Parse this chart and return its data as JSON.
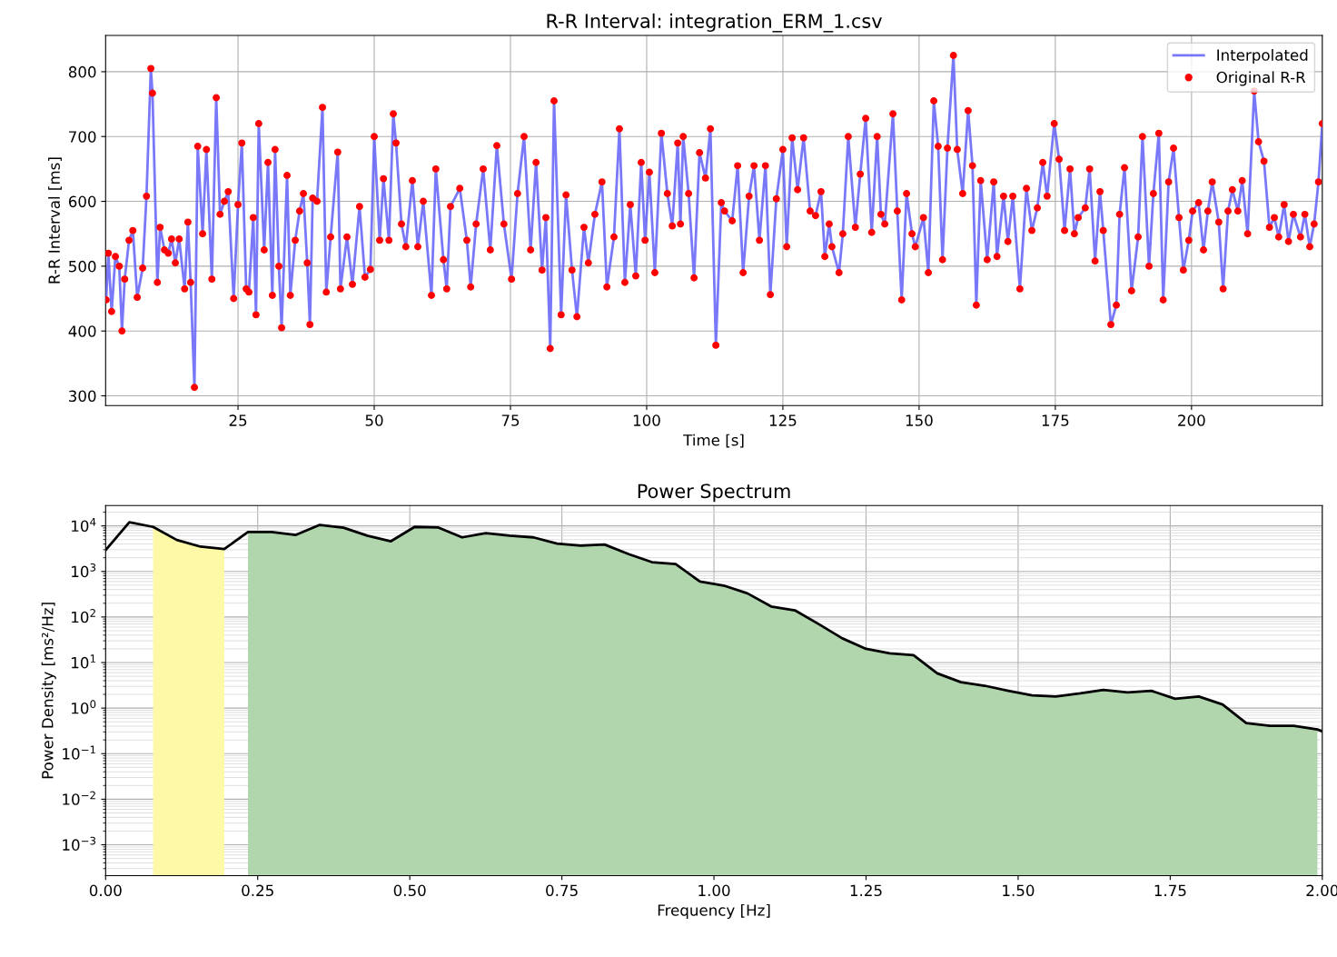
{
  "chart_data": [
    {
      "type": "line",
      "title": "R-R Interval: integration_ERM_1.csv",
      "xlabel": "Time [s]",
      "ylabel": "R-R Interval [ms]",
      "xlim": [
        0.7,
        224
      ],
      "ylim": [
        285,
        856
      ],
      "xticks": [
        25,
        50,
        75,
        100,
        125,
        150,
        175,
        200
      ],
      "yticks": [
        300,
        400,
        500,
        600,
        700,
        800
      ],
      "grid": true,
      "legend": "top right",
      "series": [
        {
          "name": "Interpolated",
          "color": "#6060f8",
          "x": [
            0.8,
            1.2,
            1.8,
            2.5,
            3.2,
            3.7,
            4.2,
            5,
            5.7,
            6.5,
            7.5,
            8.2,
            9,
            9.3,
            10.2,
            10.7,
            11.5,
            12.2,
            12.8,
            13.5,
            14.2,
            15.2,
            15.8,
            16.3,
            17,
            17.6,
            18.5,
            19.2,
            20.2,
            21,
            21.7,
            22.5,
            23.2,
            24.2,
            25,
            25.7,
            26.5,
            27,
            27.8,
            28.3,
            28.8,
            29.8,
            30.5,
            31.3,
            31.8,
            32.5,
            33,
            34,
            34.6,
            35.5,
            36.3,
            37,
            37.7,
            38.2,
            38.7,
            39.5,
            40.5,
            41.2,
            42,
            43.3,
            43.8,
            45,
            46,
            47.3,
            48.3,
            49.3,
            50,
            51,
            51.7,
            52.7,
            53.5,
            54,
            55,
            55.8,
            57,
            58,
            59,
            60.5,
            61.3,
            62.7,
            63.3,
            64,
            65.7,
            67,
            67.7,
            68.7,
            70,
            71.3,
            72.5,
            73.8,
            75.2,
            76.3,
            77.5,
            78.7,
            79.7,
            80.8,
            81.5,
            82.3,
            83,
            84.3,
            85.2,
            86.3,
            87.2,
            88.5,
            89.3,
            90.5,
            91.8,
            92.7,
            94,
            95,
            96,
            97,
            98,
            99,
            99.7,
            100.5,
            101.5,
            102.7,
            103.8,
            104.7,
            105.7,
            106.2,
            106.7,
            107.7,
            108.7,
            109.7,
            110.8,
            111.7,
            112.7,
            113.7,
            114.3,
            115.7,
            116.7,
            117.7,
            118.8,
            119.7,
            120.7,
            121.8,
            122.7,
            123.8,
            125,
            125.7,
            126.7,
            127.7,
            128.8,
            130,
            131,
            132,
            132.7,
            133.5,
            134,
            135.3,
            136,
            137,
            138.3,
            139.2,
            140.2,
            141.3,
            142.3,
            143,
            143.7,
            145.2,
            146,
            146.8,
            147.7,
            148.7,
            149.3,
            150.8,
            151.7,
            152.7,
            153.5,
            154.3,
            155.2,
            156.3,
            157,
            158,
            159,
            159.8,
            160.5,
            161.3,
            162.5,
            163.7,
            164.3,
            165.5,
            166.3,
            167.2,
            168.5,
            169.7,
            170.7,
            171.7,
            172.7,
            173.5,
            174.8,
            175.7,
            176.7,
            177.7,
            178.5,
            179.2,
            180.5,
            181.3,
            182.3,
            183.2,
            183.8,
            185.2,
            186.2,
            186.8,
            187.7,
            189,
            190.2,
            191,
            192.2,
            193,
            194,
            194.8,
            195.8,
            196.7,
            197.7,
            198.5,
            199.5,
            200.2,
            201.3,
            202.2,
            203,
            203.8,
            205,
            205.8,
            206.7,
            207.5,
            208.5,
            209.3,
            210.3,
            211.5,
            212.3,
            213.3,
            214.3,
            215.2,
            216,
            217,
            217.8,
            218.7,
            220,
            220.8,
            221.7,
            222.5,
            223.3,
            224
          ],
          "values": [
            448,
            520,
            430,
            515,
            500,
            400,
            480,
            540,
            555,
            452,
            497,
            608,
            805,
            767,
            475,
            560,
            525,
            520,
            542,
            505,
            542,
            465,
            568,
            475,
            313,
            685,
            550,
            680,
            480,
            760,
            580,
            600,
            615,
            450,
            595,
            690,
            465,
            460,
            575,
            425,
            720,
            525,
            660,
            455,
            680,
            500,
            405,
            640,
            455,
            540,
            585,
            612,
            505,
            410,
            605,
            600,
            745,
            460,
            545,
            676,
            465,
            545,
            472,
            592,
            483,
            495,
            700,
            540,
            635,
            540,
            735,
            690,
            565,
            530,
            632,
            530,
            600,
            455,
            650,
            510,
            465,
            592,
            620,
            540,
            468,
            565,
            650,
            525,
            686,
            565,
            480,
            612,
            700,
            525,
            660,
            494,
            575,
            373,
            755,
            425,
            610,
            494,
            422,
            560,
            505,
            580,
            630,
            468,
            545,
            712,
            475,
            595,
            485,
            660,
            540,
            645,
            490,
            705,
            612,
            562,
            690,
            565,
            700,
            612,
            482,
            675,
            636,
            712,
            378,
            598,
            585,
            570,
            655,
            490,
            608,
            655,
            540,
            655,
            456,
            604,
            680,
            530,
            698,
            618,
            698,
            585,
            578,
            615,
            515,
            565,
            530,
            490,
            550,
            700,
            560,
            642,
            728,
            552,
            700,
            580,
            565,
            735,
            585,
            448,
            612,
            550,
            530,
            575,
            490,
            755,
            685,
            510,
            682,
            825,
            680,
            612,
            740,
            655,
            440,
            632,
            510,
            630,
            515,
            608,
            538,
            608,
            465,
            620,
            555,
            590,
            660,
            608,
            720,
            665,
            555,
            650,
            550,
            575,
            590,
            650,
            508,
            615,
            555,
            410,
            440,
            580,
            652,
            462,
            545,
            700,
            500,
            612,
            705,
            448,
            630,
            682,
            575,
            494,
            540,
            585,
            598,
            525,
            585,
            630,
            568,
            465,
            585,
            618,
            585,
            632,
            550,
            770,
            692,
            662,
            560,
            575,
            545,
            595,
            538,
            580,
            545,
            580,
            530,
            565,
            630,
            720
          ]
        },
        {
          "name": "Original R-R",
          "type": "scatter",
          "color": "#ff0000",
          "x": [
            0.8,
            1.2,
            1.8,
            2.5,
            3.2,
            3.7,
            4.2,
            5,
            5.7,
            6.5,
            7.5,
            8.2,
            9,
            9.3,
            10.2,
            10.7,
            11.5,
            12.2,
            12.8,
            13.5,
            14.2,
            15.2,
            15.8,
            16.3,
            17,
            17.6,
            18.5,
            19.2,
            20.2,
            21,
            21.7,
            22.5,
            23.2,
            24.2,
            25,
            25.7,
            26.5,
            27,
            27.8,
            28.3,
            28.8,
            29.8,
            30.5,
            31.3,
            31.8,
            32.5,
            33,
            34,
            34.6,
            35.5,
            36.3,
            37,
            37.7,
            38.2,
            38.7,
            39.5,
            40.5,
            41.2,
            42,
            43.3,
            43.8,
            45,
            46,
            47.3,
            48.3,
            49.3,
            50,
            51,
            51.7,
            52.7,
            53.5,
            54,
            55,
            55.8,
            57,
            58,
            59,
            60.5,
            61.3,
            62.7,
            63.3,
            64,
            65.7,
            67,
            67.7,
            68.7,
            70,
            71.3,
            72.5,
            73.8,
            75.2,
            76.3,
            77.5,
            78.7,
            79.7,
            80.8,
            81.5,
            82.3,
            83,
            84.3,
            85.2,
            86.3,
            87.2,
            88.5,
            89.3,
            90.5,
            91.8,
            92.7,
            94,
            95,
            96,
            97,
            98,
            99,
            99.7,
            100.5,
            101.5,
            102.7,
            103.8,
            104.7,
            105.7,
            106.2,
            106.7,
            107.7,
            108.7,
            109.7,
            110.8,
            111.7,
            112.7,
            113.7,
            114.3,
            115.7,
            116.7,
            117.7,
            118.8,
            119.7,
            120.7,
            121.8,
            122.7,
            123.8,
            125,
            125.7,
            126.7,
            127.7,
            128.8,
            130,
            131,
            132,
            132.7,
            133.5,
            134,
            135.3,
            136,
            137,
            138.3,
            139.2,
            140.2,
            141.3,
            142.3,
            143,
            143.7,
            145.2,
            146,
            146.8,
            147.7,
            148.7,
            149.3,
            150.8,
            151.7,
            152.7,
            153.5,
            154.3,
            155.2,
            156.3,
            157,
            158,
            159,
            159.8,
            160.5,
            161.3,
            162.5,
            163.7,
            164.3,
            165.5,
            166.3,
            167.2,
            168.5,
            169.7,
            170.7,
            171.7,
            172.7,
            173.5,
            174.8,
            175.7,
            176.7,
            177.7,
            178.5,
            179.2,
            180.5,
            181.3,
            182.3,
            183.2,
            183.8,
            185.2,
            186.2,
            186.8,
            187.7,
            189,
            190.2,
            191,
            192.2,
            193,
            194,
            194.8,
            195.8,
            196.7,
            197.7,
            198.5,
            199.5,
            200.2,
            201.3,
            202.2,
            203,
            203.8,
            205,
            205.8,
            206.7,
            207.5,
            208.5,
            209.3,
            210.3,
            211.5,
            212.3,
            213.3,
            214.3,
            215.2,
            216,
            217,
            217.8,
            218.7,
            220,
            220.8,
            221.7,
            222.5,
            223.3,
            224
          ],
          "values": [
            448,
            520,
            430,
            515,
            500,
            400,
            480,
            540,
            555,
            452,
            497,
            608,
            805,
            767,
            475,
            560,
            525,
            520,
            542,
            505,
            542,
            465,
            568,
            475,
            313,
            685,
            550,
            680,
            480,
            760,
            580,
            600,
            615,
            450,
            595,
            690,
            465,
            460,
            575,
            425,
            720,
            525,
            660,
            455,
            680,
            500,
            405,
            640,
            455,
            540,
            585,
            612,
            505,
            410,
            605,
            600,
            745,
            460,
            545,
            676,
            465,
            545,
            472,
            592,
            483,
            495,
            700,
            540,
            635,
            540,
            735,
            690,
            565,
            530,
            632,
            530,
            600,
            455,
            650,
            510,
            465,
            592,
            620,
            540,
            468,
            565,
            650,
            525,
            686,
            565,
            480,
            612,
            700,
            525,
            660,
            494,
            575,
            373,
            755,
            425,
            610,
            494,
            422,
            560,
            505,
            580,
            630,
            468,
            545,
            712,
            475,
            595,
            485,
            660,
            540,
            645,
            490,
            705,
            612,
            562,
            690,
            565,
            700,
            612,
            482,
            675,
            636,
            712,
            378,
            598,
            585,
            570,
            655,
            490,
            608,
            655,
            540,
            655,
            456,
            604,
            680,
            530,
            698,
            618,
            698,
            585,
            578,
            615,
            515,
            565,
            530,
            490,
            550,
            700,
            560,
            642,
            728,
            552,
            700,
            580,
            565,
            735,
            585,
            448,
            612,
            550,
            530,
            575,
            490,
            755,
            685,
            510,
            682,
            825,
            680,
            612,
            740,
            655,
            440,
            632,
            510,
            630,
            515,
            608,
            538,
            608,
            465,
            620,
            555,
            590,
            660,
            608,
            720,
            665,
            555,
            650,
            550,
            575,
            590,
            650,
            508,
            615,
            555,
            410,
            440,
            580,
            652,
            462,
            545,
            700,
            500,
            612,
            705,
            448,
            630,
            682,
            575,
            494,
            540,
            585,
            598,
            525,
            585,
            630,
            568,
            465,
            585,
            618,
            585,
            632,
            550,
            770,
            692,
            662,
            560,
            575,
            545,
            595,
            538,
            580,
            545,
            580,
            530,
            565,
            630,
            720
          ]
        }
      ]
    },
    {
      "type": "line",
      "title": "Power Spectrum",
      "xlabel": "Frequency [Hz]",
      "ylabel": "Power Density [ms²/Hz]",
      "log": "y",
      "xlim": [
        0,
        2
      ],
      "ylim": [
        0.00021,
        28000
      ],
      "xticks": [
        {
          "value": 0,
          "label": "0.00"
        },
        {
          "value": 0.25,
          "label": "0.25"
        },
        {
          "value": 0.5,
          "label": "0.50"
        },
        {
          "value": 0.75,
          "label": "0.75"
        },
        {
          "value": 1,
          "label": "1.00"
        },
        {
          "value": 1.25,
          "label": "1.25"
        },
        {
          "value": 1.5,
          "label": "1.50"
        },
        {
          "value": 1.75,
          "label": "1.75"
        },
        {
          "value": 2,
          "label": "2.00"
        }
      ],
      "yticks": [
        {
          "value": 0.001,
          "label": "10$^{−3}$"
        },
        {
          "value": 0.01,
          "label": "10$^{−2}$"
        },
        {
          "value": 0.1,
          "label": "10$^{−1}$"
        },
        {
          "value": 1,
          "label": "10$^{0}$"
        },
        {
          "value": 10,
          "label": "10$^{1}$"
        },
        {
          "value": 100,
          "label": "10$^{2}$"
        },
        {
          "value": 1000,
          "label": "10$^{3}$"
        },
        {
          "value": 10000,
          "label": "10$^{4}$"
        }
      ],
      "grid": true,
      "series": [
        {
          "type": "area",
          "color": "#fdf9a6",
          "x": [
            0.078,
            0.117,
            0.156,
            0.195
          ],
          "values": [
            9500,
            4900,
            3500,
            3100
          ]
        },
        {
          "type": "area",
          "color": "#b1d6ae",
          "x": [
            0.234,
            0.273,
            0.312,
            0.352,
            0.391,
            0.43,
            0.469,
            0.508,
            0.547,
            0.586,
            0.625,
            0.664,
            0.703,
            0.742,
            0.781,
            0.82,
            0.86,
            0.898,
            0.937,
            0.977,
            1.016,
            1.055,
            1.094,
            1.133,
            1.172,
            1.211,
            1.25,
            1.289,
            1.328,
            1.367,
            1.406,
            1.445,
            1.484,
            1.523,
            1.562,
            1.602,
            1.64,
            1.68,
            1.719,
            1.758,
            1.797,
            1.836,
            1.875,
            1.914,
            1.953,
            1.992
          ],
          "values": [
            7300,
            7300,
            6300,
            10500,
            9100,
            6100,
            4600,
            9500,
            9200,
            5600,
            6900,
            6100,
            5600,
            4100,
            3700,
            3900,
            2400,
            1600,
            1450,
            600,
            490,
            330,
            170,
            140,
            70,
            34,
            20,
            16,
            14.5,
            5.8,
            3.7,
            3.1,
            2.4,
            1.9,
            1.8,
            2.1,
            2.5,
            2.2,
            2.4,
            1.6,
            1.8,
            1.2,
            0.47,
            0.41,
            0.41,
            0.34
          ]
        },
        {
          "color": "#000000",
          "x": [
            0,
            0.039,
            0.078,
            0.117,
            0.156,
            0.195,
            0.234,
            0.273,
            0.312,
            0.352,
            0.391,
            0.43,
            0.469,
            0.508,
            0.547,
            0.586,
            0.625,
            0.664,
            0.703,
            0.742,
            0.781,
            0.82,
            0.86,
            0.898,
            0.937,
            0.977,
            1.016,
            1.055,
            1.094,
            1.133,
            1.172,
            1.211,
            1.25,
            1.289,
            1.328,
            1.367,
            1.406,
            1.445,
            1.484,
            1.523,
            1.562,
            1.602,
            1.64,
            1.68,
            1.719,
            1.758,
            1.797,
            1.836,
            1.875,
            1.914,
            1.953,
            1.992,
            2.0
          ],
          "values": [
            2950,
            12000,
            9500,
            4900,
            3500,
            3100,
            7300,
            7300,
            6300,
            10500,
            9100,
            6100,
            4600,
            9500,
            9200,
            5600,
            6900,
            6100,
            5600,
            4100,
            3700,
            3900,
            2400,
            1600,
            1450,
            600,
            490,
            330,
            170,
            140,
            70,
            34,
            20,
            16,
            14.5,
            5.8,
            3.7,
            3.1,
            2.4,
            1.9,
            1.8,
            2.1,
            2.5,
            2.2,
            2.4,
            1.6,
            1.8,
            1.2,
            0.47,
            0.41,
            0.41,
            0.34,
            0.31
          ]
        }
      ]
    }
  ]
}
